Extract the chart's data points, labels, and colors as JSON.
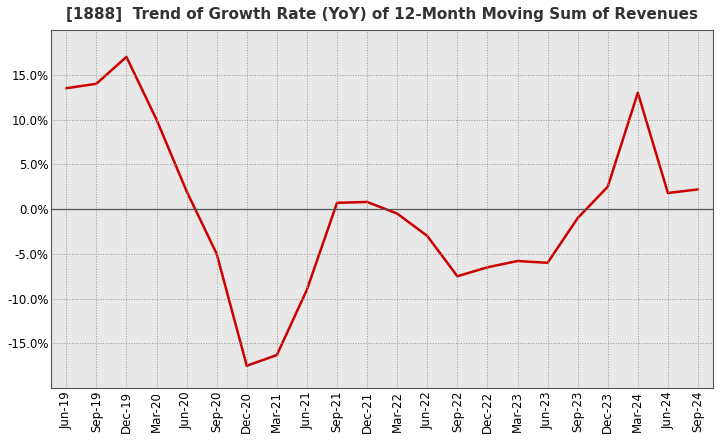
{
  "title": "[1888]  Trend of Growth Rate (YoY) of 12-Month Moving Sum of Revenues",
  "x_labels": [
    "Jun-19",
    "Sep-19",
    "Dec-19",
    "Mar-20",
    "Jun-20",
    "Sep-20",
    "Dec-20",
    "Mar-21",
    "Jun-21",
    "Sep-21",
    "Dec-21",
    "Mar-22",
    "Jun-22",
    "Sep-22",
    "Dec-22",
    "Mar-23",
    "Jun-23",
    "Sep-23",
    "Dec-23",
    "Mar-24",
    "Jun-24",
    "Sep-24"
  ],
  "y_values": [
    13.5,
    14.0,
    17.0,
    10.0,
    2.0,
    -5.0,
    -17.5,
    -16.3,
    -9.0,
    0.7,
    0.8,
    -0.5,
    -3.0,
    -7.5,
    -6.5,
    -5.8,
    -6.0,
    -1.0,
    2.5,
    13.0,
    1.8,
    2.2
  ],
  "line_color": "#cc0000",
  "line_width": 1.8,
  "ylim": [
    -20,
    20
  ],
  "ytick_values": [
    -15.0,
    -10.0,
    -5.0,
    0.0,
    5.0,
    10.0,
    15.0
  ],
  "background_color": "#ffffff",
  "plot_bg_color": "#e8e8e8",
  "grid_color": "#999999",
  "title_fontsize": 11,
  "tick_fontsize": 8.5
}
